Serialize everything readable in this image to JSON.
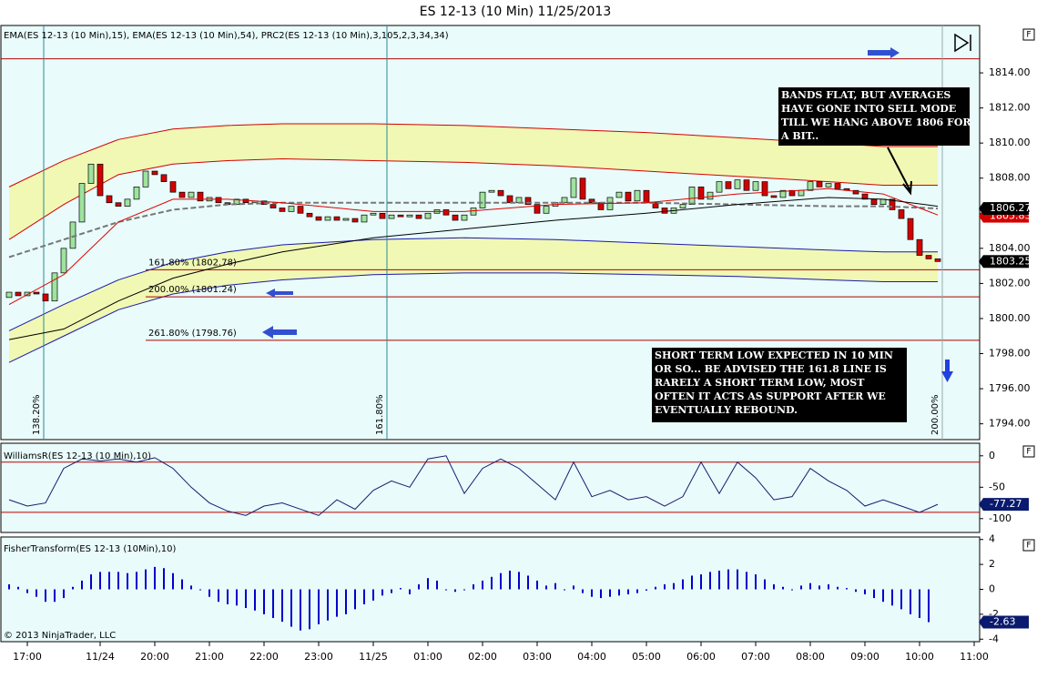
{
  "chart_data": {
    "title": "ES 12-13 (10 Min)  11/25/2013",
    "copyright": "© 2013 NinjaTrader, LLC",
    "panel_button": "F",
    "xticks": [
      {
        "value": 2,
        "label": "17:00"
      },
      {
        "value": 10,
        "label": "11/24"
      },
      {
        "value": 16,
        "label": "20:00"
      },
      {
        "value": 22,
        "label": "21:00"
      },
      {
        "value": 28,
        "label": "22:00"
      },
      {
        "value": 34,
        "label": "23:00"
      },
      {
        "value": 40,
        "label": "11/25"
      },
      {
        "value": 46,
        "label": "01:00"
      },
      {
        "value": 52,
        "label": "02:00"
      },
      {
        "value": 58,
        "label": "03:00"
      },
      {
        "value": 64,
        "label": "04:00"
      },
      {
        "value": 70,
        "label": "05:00"
      },
      {
        "value": 76,
        "label": "06:00"
      },
      {
        "value": 82,
        "label": "07:00"
      },
      {
        "value": 88,
        "label": "08:00"
      },
      {
        "value": 94,
        "label": "09:00"
      },
      {
        "value": 100,
        "label": "10:00"
      },
      {
        "value": 106,
        "label": "11:00"
      }
    ],
    "price": {
      "type": "candlestick",
      "legend": "EMA(ES 12-13 (10 Min),15), EMA(ES 12-13 (10 Min),54), PRC2(ES 12-13 (10 Min),3,105,2,3,34,34)",
      "up_color": "#9ee39e",
      "down_color": "#d40000",
      "open": [
        1801.2,
        1801.5,
        1801.3,
        1801.5,
        1801.4,
        1801.0,
        1802.6,
        1804.0,
        1805.5,
        1807.7,
        1808.8,
        1807.0,
        1806.6,
        1806.4,
        1806.8,
        1807.5,
        1808.4,
        1808.2,
        1807.8,
        1807.2,
        1806.9,
        1807.2,
        1806.7,
        1806.9,
        1806.6,
        1806.5,
        1806.8,
        1806.6,
        1806.7,
        1806.5,
        1806.3,
        1806.1,
        1806.4,
        1806.0,
        1805.8,
        1805.6,
        1805.8,
        1805.6,
        1805.7,
        1805.5,
        1805.9,
        1806.0,
        1805.7,
        1805.9,
        1805.8,
        1805.9,
        1805.7,
        1806.0,
        1806.2,
        1805.9,
        1805.6,
        1805.9,
        1806.3,
        1807.2,
        1807.3,
        1807.0,
        1806.6,
        1806.9,
        1806.5,
        1806.0,
        1806.4,
        1806.6,
        1806.9,
        1808.0,
        1806.8,
        1806.6,
        1806.2,
        1806.9,
        1807.2,
        1806.7,
        1807.3,
        1806.6,
        1806.3,
        1806.0,
        1806.3,
        1806.5,
        1807.5,
        1806.8,
        1807.2,
        1807.8,
        1807.4,
        1807.9,
        1807.3,
        1807.8,
        1807.0,
        1806.9,
        1807.3,
        1807.0,
        1807.3,
        1807.8,
        1807.5,
        1807.7,
        1807.4,
        1807.3,
        1807.1,
        1806.8,
        1806.5,
        1806.8,
        1806.2,
        1805.7,
        1804.5,
        1803.6,
        1803.4
      ],
      "close": [
        1801.5,
        1801.3,
        1801.5,
        1801.4,
        1801.0,
        1802.6,
        1804.0,
        1805.5,
        1807.7,
        1808.8,
        1807.0,
        1806.6,
        1806.4,
        1806.8,
        1807.5,
        1808.4,
        1808.2,
        1807.8,
        1807.2,
        1806.9,
        1807.2,
        1806.7,
        1806.9,
        1806.6,
        1806.5,
        1806.8,
        1806.6,
        1806.7,
        1806.5,
        1806.3,
        1806.1,
        1806.4,
        1806.0,
        1805.8,
        1805.6,
        1805.8,
        1805.6,
        1805.7,
        1805.5,
        1805.9,
        1806.0,
        1805.7,
        1805.9,
        1805.8,
        1805.9,
        1805.7,
        1806.0,
        1806.2,
        1805.9,
        1805.6,
        1805.9,
        1806.3,
        1807.2,
        1807.3,
        1807.0,
        1806.6,
        1806.9,
        1806.5,
        1806.0,
        1806.4,
        1806.6,
        1806.9,
        1808.0,
        1806.8,
        1806.6,
        1806.2,
        1806.9,
        1807.2,
        1806.7,
        1807.3,
        1806.6,
        1806.3,
        1806.0,
        1806.3,
        1806.5,
        1807.5,
        1806.8,
        1807.2,
        1807.8,
        1807.4,
        1807.9,
        1807.3,
        1807.8,
        1807.0,
        1806.9,
        1807.3,
        1807.0,
        1807.3,
        1807.8,
        1807.5,
        1807.7,
        1807.4,
        1807.3,
        1807.1,
        1806.8,
        1806.5,
        1806.8,
        1806.2,
        1805.7,
        1804.5,
        1803.6,
        1803.4,
        1803.25
      ],
      "ylim": [
        1793.1,
        1816.7
      ],
      "yticks": [
        {
          "value": 1794,
          "label": "1794.00"
        },
        {
          "value": 1796,
          "label": "1796.00"
        },
        {
          "value": 1798,
          "label": "1798.00"
        },
        {
          "value": 1800,
          "label": "1800.00"
        },
        {
          "value": 1802,
          "label": "1802.00"
        },
        {
          "value": 1804,
          "label": "1804.00"
        },
        {
          "value": 1806,
          "label": "1806.00"
        },
        {
          "value": 1808,
          "label": "1808.00"
        },
        {
          "value": 1810,
          "label": "1810.00"
        },
        {
          "value": 1812,
          "label": "1812.00"
        },
        {
          "value": 1814,
          "label": "1814.00"
        }
      ],
      "band_x": [
        0,
        6,
        12,
        18,
        24,
        30,
        40,
        50,
        60,
        70,
        80,
        90,
        96,
        102
      ],
      "bands": [
        {
          "color": "#d40000",
          "values": [
            1807.5,
            1809.0,
            1810.2,
            1810.8,
            1811.0,
            1811.1,
            1811.1,
            1811.0,
            1810.8,
            1810.6,
            1810.3,
            1810.0,
            1809.8,
            1809.8
          ]
        },
        {
          "color": "#d40000",
          "values": [
            1804.5,
            1806.5,
            1808.2,
            1808.8,
            1809.0,
            1809.1,
            1809.0,
            1808.9,
            1808.7,
            1808.4,
            1808.1,
            1807.8,
            1807.6,
            1807.6
          ]
        },
        {
          "color": "#1a1aa8",
          "values": [
            1799.3,
            1800.8,
            1802.2,
            1803.2,
            1803.8,
            1804.2,
            1804.5,
            1804.6,
            1804.5,
            1804.3,
            1804.1,
            1803.9,
            1803.8,
            1803.8
          ]
        },
        {
          "color": "#1a1aa8",
          "values": [
            1797.5,
            1799.0,
            1800.5,
            1801.4,
            1801.9,
            1802.2,
            1802.5,
            1802.6,
            1802.6,
            1802.5,
            1802.4,
            1802.2,
            1802.1,
            1802.1
          ]
        }
      ],
      "band_fill": "#f0f8b4",
      "lines": [
        {
          "color": "#777777",
          "dash": true,
          "values": [
            1803.5,
            1804.5,
            1805.5,
            1806.2,
            1806.5,
            1806.6,
            1806.6,
            1806.6,
            1806.6,
            1806.6,
            1806.5,
            1806.4,
            1806.4,
            1806.27
          ]
        },
        {
          "color": "#e00000",
          "values": [
            1800.8,
            1802.5,
            1805.5,
            1806.8,
            1806.8,
            1806.6,
            1806.1,
            1806.1,
            1806.5,
            1806.6,
            1807.1,
            1807.4,
            1807.1,
            1805.9
          ]
        },
        {
          "color": "#000000",
          "values": [
            1798.8,
            1799.4,
            1801.0,
            1802.3,
            1803.1,
            1803.8,
            1804.6,
            1805.1,
            1805.6,
            1806.0,
            1806.5,
            1806.9,
            1806.8,
            1806.4
          ]
        }
      ],
      "levels": [
        {
          "value": 1814.8
        },
        {
          "value": 1802.78,
          "label": "161.80% (1802.78)"
        },
        {
          "value": 1801.24,
          "label": "200.00% (1801.24)"
        },
        {
          "value": 1798.76,
          "label": "261.80% (1798.76)"
        }
      ],
      "verticals": [
        {
          "x": 3.8,
          "label": "138.20%"
        },
        {
          "x": 41.5,
          "label": "161.80%"
        },
        {
          "x": 102.5,
          "label": "200.00%"
        }
      ],
      "badges": [
        {
          "value": 1805.83,
          "color": "#d40000"
        },
        {
          "value": 1806.27,
          "color": "#000000"
        },
        {
          "value": 1803.25,
          "color": "#000000"
        }
      ],
      "annotations": [
        {
          "lines": [
            "BANDS FLAT, BUT  AVERAGES",
            "HAVE GONE INTO SELL MODE",
            "TILL WE HANG ABOVE 1806 FOR",
            "A BIT.."
          ]
        },
        {
          "lines": [
            "SHORT TERM LOW EXPECTED IN 10 MIN",
            "OR SO... BE ADVISED THE 161.8 LINE IS",
            "RARELY A SHORT TERM LOW, MOST",
            "OFTEN IT ACTS AS SUPPORT AFTER WE",
            "EVENTUALLY REBOUND."
          ]
        }
      ]
    },
    "williams": {
      "type": "line",
      "legend": "WilliamsR(ES 12-13 (10 Min),10)",
      "color": "#1a1a6e",
      "x": [
        0,
        2,
        4,
        6,
        8,
        10,
        12,
        14,
        16,
        18,
        20,
        22,
        24,
        26,
        28,
        30,
        32,
        34,
        36,
        38,
        40,
        42,
        44,
        46,
        48,
        50,
        52,
        54,
        56,
        58,
        60,
        62,
        64,
        66,
        68,
        70,
        72,
        74,
        76,
        78,
        80,
        82,
        84,
        86,
        88,
        90,
        92,
        94,
        96,
        98,
        100,
        102
      ],
      "values": [
        -70,
        -80,
        -75,
        -20,
        -5,
        -8,
        -5,
        -10,
        -3,
        -20,
        -50,
        -75,
        -88,
        -95,
        -80,
        -75,
        -85,
        -95,
        -70,
        -85,
        -55,
        -40,
        -50,
        -5,
        0,
        -60,
        -20,
        -5,
        -20,
        -45,
        -70,
        -10,
        -65,
        -55,
        -70,
        -65,
        -80,
        -65,
        -10,
        -60,
        -10,
        -35,
        -70,
        -65,
        -20,
        -40,
        -55,
        -80,
        -70,
        -80,
        -90,
        -77.27
      ],
      "ylim": [
        -122,
        20
      ],
      "yticks": [
        0,
        -50,
        -100
      ],
      "levels": [
        -10,
        -90
      ],
      "badge": -77.27
    },
    "fisher": {
      "type": "bar",
      "legend": "FisherTransform(ES 12-13 (10Min),10)",
      "color": "#0000cc",
      "values": [
        0.4,
        0.2,
        -0.3,
        -0.6,
        -1.0,
        -1.0,
        -0.7,
        0.2,
        0.7,
        1.2,
        1.4,
        1.4,
        1.4,
        1.3,
        1.4,
        1.6,
        1.8,
        1.7,
        1.3,
        0.8,
        0.3,
        0,
        -0.6,
        -1.0,
        -1.2,
        -1.3,
        -1.5,
        -1.7,
        -2.0,
        -2.3,
        -2.6,
        -3.0,
        -3.3,
        -3.2,
        -2.8,
        -2.5,
        -2.2,
        -2.0,
        -1.6,
        -1.2,
        -0.9,
        -0.5,
        -0.3,
        0.1,
        -0.4,
        0.4,
        0.9,
        0.7,
        0.0,
        -0.2,
        0.0,
        0.4,
        0.7,
        1.0,
        1.3,
        1.5,
        1.4,
        1.1,
        0.7,
        0.3,
        0.5,
        0.0,
        0.3,
        -0.3,
        -0.6,
        -0.7,
        -0.6,
        -0.5,
        -0.4,
        -0.3,
        -0.1,
        0.2,
        0.4,
        0.5,
        0.8,
        1.1,
        1.2,
        1.4,
        1.5,
        1.6,
        1.6,
        1.4,
        1.2,
        0.8,
        0.4,
        0.2,
        0.0,
        0.3,
        0.5,
        0.3,
        0.4,
        0.2,
        0.1,
        -0.2,
        -0.4,
        -0.7,
        -1.0,
        -1.3,
        -1.6,
        -2.0,
        -2.3,
        -2.63
      ],
      "ylim": [
        -4.2,
        4.2
      ],
      "yticks": [
        4,
        2,
        0,
        -2,
        -4
      ],
      "badge": -2.63
    }
  }
}
